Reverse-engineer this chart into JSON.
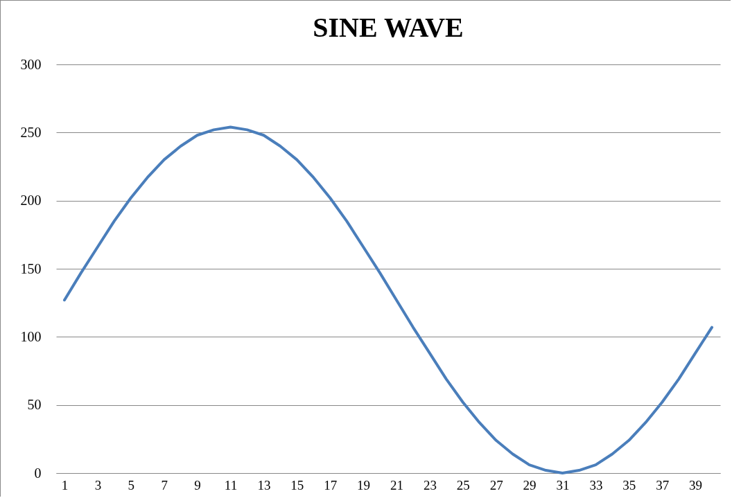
{
  "chart_data": {
    "type": "line",
    "title": "SINE WAVE",
    "x": [
      1,
      2,
      3,
      4,
      5,
      6,
      7,
      8,
      9,
      10,
      11,
      12,
      13,
      14,
      15,
      16,
      17,
      18,
      19,
      20,
      21,
      22,
      23,
      24,
      25,
      26,
      27,
      28,
      29,
      30,
      31,
      32,
      33,
      34,
      35,
      36,
      37,
      38,
      39,
      40
    ],
    "series": [
      {
        "color": "#4a7ebb",
        "values": [
          127,
          147,
          166,
          185,
          202,
          217,
          230,
          240,
          248,
          252,
          254,
          252,
          248,
          240,
          230,
          217,
          202,
          185,
          166,
          147,
          127,
          107,
          88,
          69,
          52,
          37,
          24,
          14,
          6,
          2,
          0,
          2,
          6,
          14,
          24,
          37,
          52,
          69,
          88,
          107
        ]
      }
    ],
    "xlim": [
      0.5,
      40.5
    ],
    "xticks": [
      1,
      3,
      5,
      7,
      9,
      11,
      13,
      15,
      17,
      19,
      21,
      23,
      25,
      27,
      29,
      31,
      33,
      35,
      37,
      39
    ],
    "ylim": [
      0,
      300
    ],
    "yticks": [
      0,
      50,
      100,
      150,
      200,
      250,
      300
    ],
    "grid": "y",
    "marker": "none",
    "line_style": "solid"
  }
}
